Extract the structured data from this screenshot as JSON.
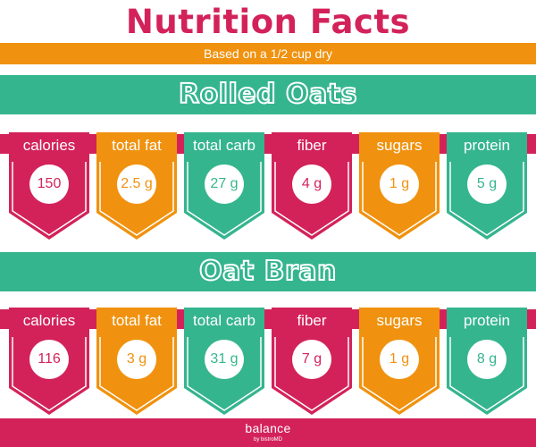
{
  "title": "Nutrition Facts",
  "subtitle": "Based on a 1/2 cup dry",
  "colors": {
    "crimson": "#d3225a",
    "orange": "#f0920f",
    "teal": "#35b58e",
    "white": "#ffffff"
  },
  "sections": [
    {
      "name": "Rolled Oats",
      "facts": [
        {
          "label": "calories",
          "value": "150",
          "color": "#d3225a"
        },
        {
          "label": "total fat",
          "value": "2.5 g",
          "color": "#f0920f"
        },
        {
          "label": "total carb",
          "value": "27 g",
          "color": "#35b58e"
        },
        {
          "label": "fiber",
          "value": "4 g",
          "color": "#d3225a"
        },
        {
          "label": "sugars",
          "value": "1 g",
          "color": "#f0920f"
        },
        {
          "label": "protein",
          "value": "5 g",
          "color": "#35b58e"
        }
      ]
    },
    {
      "name": "Oat Bran",
      "facts": [
        {
          "label": "calories",
          "value": "116",
          "color": "#d3225a"
        },
        {
          "label": "total fat",
          "value": "3 g",
          "color": "#f0920f"
        },
        {
          "label": "total carb",
          "value": "31 g",
          "color": "#35b58e"
        },
        {
          "label": "fiber",
          "value": "7 g",
          "color": "#d3225a"
        },
        {
          "label": "sugars",
          "value": "1 g",
          "color": "#f0920f"
        },
        {
          "label": "protein",
          "value": "8 g",
          "color": "#35b58e"
        }
      ]
    }
  ],
  "footer": {
    "logo": "balance",
    "logo_sub": "by bistroMD"
  }
}
